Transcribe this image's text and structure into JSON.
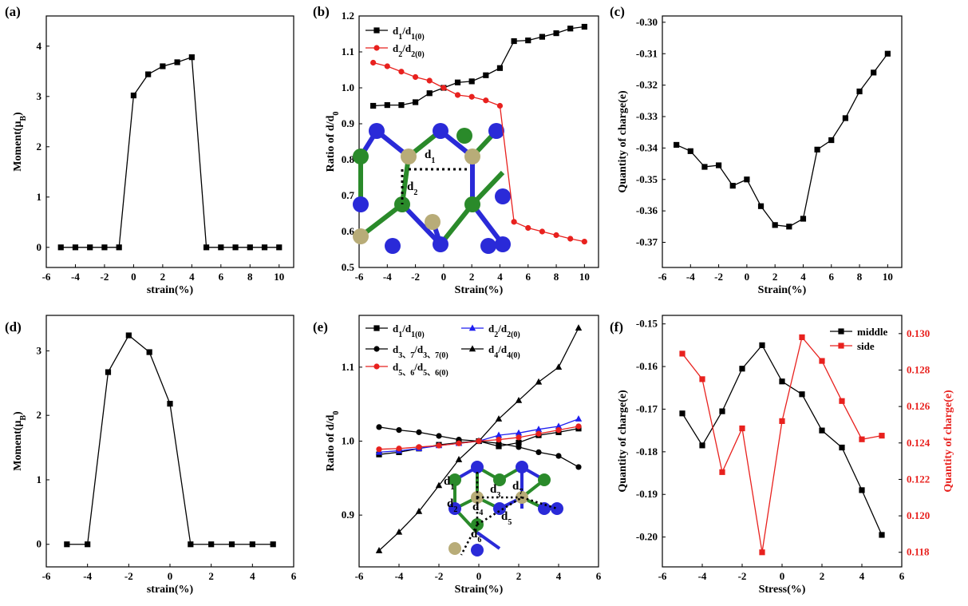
{
  "chart_data": [
    {
      "panel": "(a)",
      "type": "line",
      "title": "",
      "xlabel": "strain(%)",
      "ylabel": "Moment(μ",
      "ylabel_sub": "B",
      "ylabel_end": ")",
      "xlim": [
        -6,
        11
      ],
      "ylim": [
        -0.4,
        4.6
      ],
      "xticks": [
        -6,
        -4,
        -2,
        0,
        2,
        4,
        6,
        8,
        10
      ],
      "yticks": [
        0,
        1,
        2,
        3,
        4
      ],
      "series": [
        {
          "name": "moment",
          "color": "#000000",
          "marker": "square",
          "x": [
            -5,
            -4,
            -3,
            -2,
            -1,
            0,
            1,
            2,
            3,
            4,
            5,
            6,
            7,
            8,
            9,
            10
          ],
          "y": [
            0,
            0,
            0,
            0,
            0,
            3.02,
            3.44,
            3.6,
            3.68,
            3.78,
            0,
            0,
            0,
            0,
            0,
            0
          ]
        }
      ]
    },
    {
      "panel": "(b)",
      "type": "line",
      "title": "",
      "xlabel": "Strain(%)",
      "ylabel": "Ratio of d/d",
      "ylabel_sub": "0",
      "ylabel_end": "",
      "xlim": [
        -6,
        11
      ],
      "ylim": [
        0.5,
        1.2
      ],
      "xticks": [
        -6,
        -4,
        -2,
        0,
        2,
        4,
        6,
        8,
        10
      ],
      "yticks": [
        0.5,
        0.6,
        0.7,
        0.8,
        0.9,
        1.0,
        1.1,
        1.2
      ],
      "ytick_labels": [
        "0.5",
        "0.6",
        "0.7",
        "0.8",
        "0.9",
        "1.0",
        "1.1",
        "1.2"
      ],
      "legend": [
        {
          "label": "d",
          "sub": "1",
          "mid": "/d",
          "sub2": "1(0)",
          "series": 0
        },
        {
          "label": "d",
          "sub": "2",
          "mid": "/d",
          "sub2": "2(0)",
          "series": 1
        }
      ],
      "series": [
        {
          "name": "d1/d1(0)",
          "color": "#000000",
          "marker": "square",
          "x": [
            -5,
            -4,
            -3,
            -2,
            -1,
            0,
            1,
            2,
            3,
            4,
            5,
            6,
            7,
            8,
            9,
            10
          ],
          "y": [
            0.95,
            0.952,
            0.952,
            0.96,
            0.985,
            1.0,
            1.015,
            1.018,
            1.035,
            1.055,
            1.13,
            1.132,
            1.142,
            1.152,
            1.165,
            1.17
          ]
        },
        {
          "name": "d2/d2(0)",
          "color": "#e8211e",
          "marker": "circle",
          "x": [
            -5,
            -4,
            -3,
            -2,
            -1,
            0,
            1,
            2,
            3,
            4,
            5,
            6,
            7,
            8,
            9,
            10
          ],
          "y": [
            1.07,
            1.06,
            1.045,
            1.03,
            1.02,
            1.0,
            0.98,
            0.975,
            0.965,
            0.95,
            0.627,
            0.61,
            0.6,
            0.59,
            0.58,
            0.572
          ]
        }
      ],
      "inset_labels": [
        "d",
        "1",
        "d",
        "2"
      ]
    },
    {
      "panel": "(c)",
      "type": "line",
      "title": "",
      "xlabel": "Strain(%)",
      "ylabel": "Quantity of charge(e)",
      "xlim": [
        -6,
        11
      ],
      "ylim": [
        -0.378,
        -0.298
      ],
      "xticks": [
        -6,
        -4,
        -2,
        0,
        2,
        4,
        6,
        8,
        10
      ],
      "yticks": [
        -0.37,
        -0.36,
        -0.35,
        -0.34,
        -0.33,
        -0.32,
        -0.31,
        -0.3
      ],
      "ytick_labels": [
        "-0.37",
        "-0.36",
        "-0.35",
        "-0.34",
        "-0.33",
        "-0.32",
        "-0.31",
        "-0.30"
      ],
      "series": [
        {
          "name": "charge",
          "color": "#000000",
          "marker": "square",
          "x": [
            -5,
            -4,
            -3,
            -2,
            -1,
            0,
            1,
            2,
            3,
            4,
            5,
            6,
            7,
            8,
            9,
            10
          ],
          "y": [
            -0.339,
            -0.341,
            -0.346,
            -0.3455,
            -0.352,
            -0.35,
            -0.3585,
            -0.3645,
            -0.365,
            -0.3625,
            -0.3405,
            -0.3375,
            -0.3305,
            -0.322,
            -0.316,
            -0.31
          ]
        }
      ]
    },
    {
      "panel": "(d)",
      "type": "line",
      "title": "",
      "xlabel": "strain(%)",
      "ylabel": "Moment(μ",
      "ylabel_sub": "B",
      "ylabel_end": ")",
      "xlim": [
        -6,
        6
      ],
      "ylim": [
        -0.35,
        3.55
      ],
      "xticks": [
        -6,
        -4,
        -2,
        0,
        2,
        4,
        6
      ],
      "yticks": [
        0,
        1,
        2,
        3
      ],
      "series": [
        {
          "name": "moment",
          "color": "#000000",
          "marker": "square",
          "x": [
            -5,
            -4,
            -3,
            -2,
            -1,
            0,
            1,
            2,
            3,
            4,
            5
          ],
          "y": [
            0,
            0,
            2.67,
            3.24,
            2.98,
            2.18,
            0,
            0,
            0,
            0,
            0
          ]
        }
      ]
    },
    {
      "panel": "(e)",
      "type": "line",
      "title": "",
      "xlabel": "Strain(%)",
      "ylabel": "Ratio of d/d",
      "ylabel_sub": "0",
      "ylabel_end": "",
      "xlim": [
        -6,
        6
      ],
      "ylim": [
        0.83,
        1.17
      ],
      "xticks": [
        -6,
        -4,
        -2,
        0,
        2,
        4,
        6
      ],
      "yticks": [
        0.9,
        1.0,
        1.1
      ],
      "ytick_labels": [
        "0.9",
        "1.0",
        "1.1"
      ],
      "legend": [
        {
          "label": "d",
          "sub": "1",
          "mid": "/d",
          "sub2": "1(0)",
          "series": 0
        },
        {
          "label": "d",
          "sub": "2",
          "mid": "/d",
          "sub2": "2(0)",
          "series": 1
        },
        {
          "label": "d",
          "sub": "3、7",
          "mid": "/d",
          "sub2": "3、7(0)",
          "series": 2
        },
        {
          "label": "d",
          "sub": "4",
          "mid": "/d",
          "sub2": "4(0)",
          "series": 3
        },
        {
          "label": "d",
          "sub": "5、6",
          "mid": "/d",
          "sub2": "5、6(0)",
          "series": 4
        }
      ],
      "series": [
        {
          "name": "d1/d1(0)",
          "color": "#000000",
          "marker": "square",
          "x": [
            -5,
            -4,
            -3,
            -2,
            -1,
            0,
            1,
            2,
            3,
            4,
            5
          ],
          "y": [
            0.982,
            0.985,
            0.99,
            0.995,
            0.998,
            1.0,
            0.993,
            0.998,
            1.008,
            1.012,
            1.017
          ]
        },
        {
          "name": "d2/d2(0)",
          "color": "#1f1ff0",
          "marker": "triangle",
          "x": [
            -5,
            -4,
            -3,
            -2,
            -1,
            0,
            1,
            2,
            3,
            4,
            5
          ],
          "y": [
            0.985,
            0.987,
            0.99,
            0.994,
            0.997,
            1.0,
            1.008,
            1.011,
            1.016,
            1.02,
            1.03
          ]
        },
        {
          "name": "d3,7/d3,7(0)",
          "color": "#000000",
          "marker": "circle",
          "x": [
            -5,
            -4,
            -3,
            -2,
            -1,
            0,
            1,
            2,
            3,
            4,
            5
          ],
          "y": [
            1.019,
            1.015,
            1.012,
            1.007,
            1.002,
            1.0,
            0.997,
            0.992,
            0.985,
            0.98,
            0.965
          ]
        },
        {
          "name": "d4/d4(0)",
          "color": "#000000",
          "marker": "triangle",
          "x": [
            -5,
            -4,
            -3,
            -2,
            -1,
            0,
            1,
            2,
            3,
            4,
            5
          ],
          "y": [
            0.852,
            0.877,
            0.905,
            0.94,
            0.975,
            1.0,
            1.03,
            1.055,
            1.08,
            1.1,
            1.153
          ]
        },
        {
          "name": "d5,6/d5,6(0)",
          "color": "#e8211e",
          "marker": "circle",
          "x": [
            -5,
            -4,
            -3,
            -2,
            -1,
            0,
            1,
            2,
            3,
            4,
            5
          ],
          "y": [
            0.989,
            0.99,
            0.992,
            0.994,
            0.997,
            1.0,
            1.002,
            1.005,
            1.01,
            1.015,
            1.02
          ]
        }
      ],
      "inset_labels": [
        "d",
        "1",
        "d",
        "3",
        "d",
        "7",
        "d",
        "2",
        "d",
        "4",
        "d",
        "5",
        "d",
        "6"
      ]
    },
    {
      "panel": "(f)",
      "type": "line",
      "title": "",
      "xlabel": "Stress(%)",
      "ylabel": "Quantity of charge(e)",
      "ylabel_right": "Quantity of charge(e)",
      "xlim": [
        -6,
        6
      ],
      "ylim": [
        -0.207,
        -0.148
      ],
      "ylim_right": [
        0.1172,
        0.131
      ],
      "xticks": [
        -6,
        -4,
        -2,
        0,
        2,
        4,
        6
      ],
      "yticks": [
        -0.2,
        -0.19,
        -0.18,
        -0.17,
        -0.16,
        -0.15
      ],
      "ytick_labels": [
        "-0.20",
        "-0.19",
        "-0.18",
        "-0.17",
        "-0.16",
        "-0.15"
      ],
      "yticks_right": [
        0.118,
        0.12,
        0.122,
        0.124,
        0.126,
        0.128,
        0.13
      ],
      "ytick_labels_right": [
        "0.118",
        "0.120",
        "0.122",
        "0.124",
        "0.126",
        "0.128",
        "0.130"
      ],
      "legend": [
        {
          "label": "middle",
          "series": 0
        },
        {
          "label": "side",
          "series": 1
        }
      ],
      "series": [
        {
          "name": "middle",
          "color": "#000000",
          "marker": "square",
          "axis": "left",
          "x": [
            -5,
            -4,
            -3,
            -2,
            -1,
            0,
            1,
            2,
            3,
            4,
            5
          ],
          "y": [
            -0.171,
            -0.1785,
            -0.1705,
            -0.1605,
            -0.155,
            -0.1635,
            -0.1665,
            -0.175,
            -0.179,
            -0.189,
            -0.1995
          ]
        },
        {
          "name": "side",
          "color": "#e8211e",
          "marker": "square",
          "axis": "right",
          "x": [
            -5,
            -4,
            -3,
            -2,
            -1,
            0,
            1,
            2,
            3,
            4,
            5
          ],
          "y": [
            0.1289,
            0.1275,
            0.1224,
            0.1248,
            0.118,
            0.1252,
            0.1298,
            0.1285,
            0.1263,
            0.1242,
            0.1244
          ]
        }
      ]
    }
  ]
}
